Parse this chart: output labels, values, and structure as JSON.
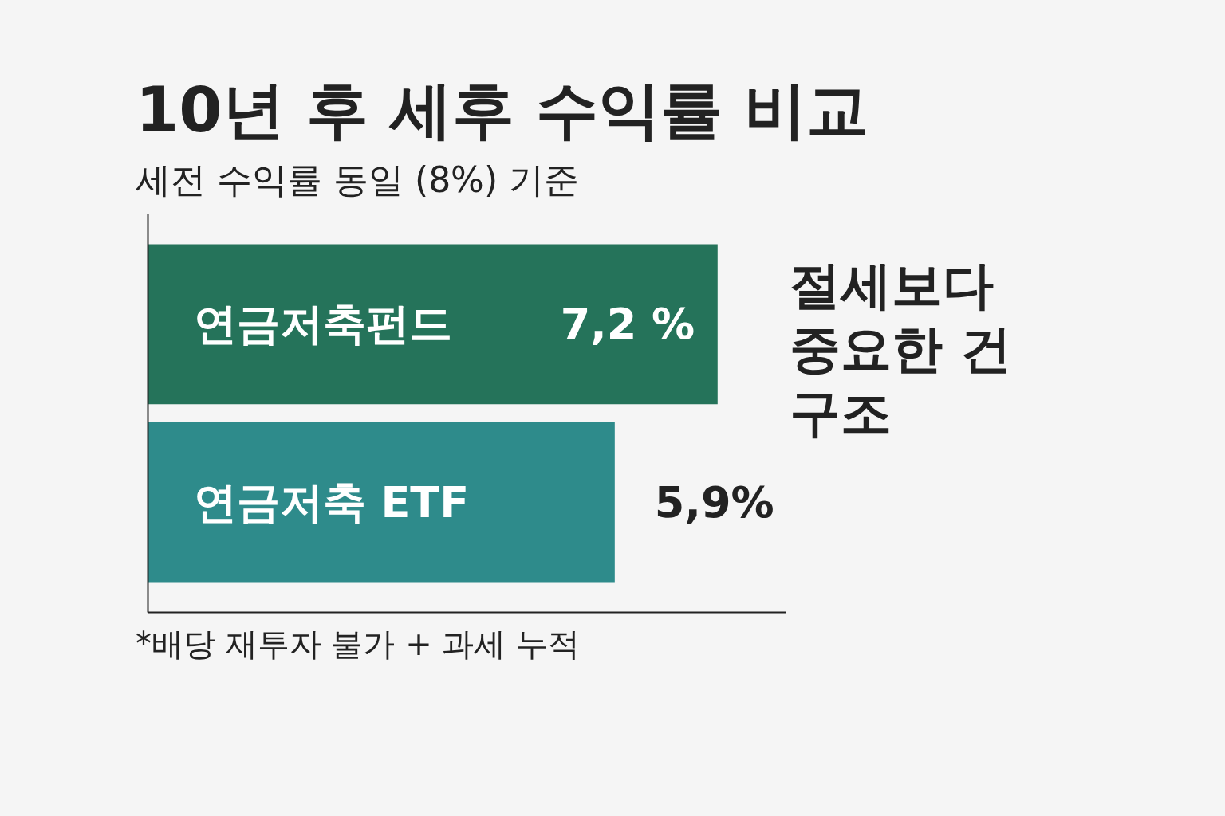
{
  "chart_data": {
    "type": "bar",
    "orientation": "horizontal",
    "title": "10년 후 세후 수익률 비교",
    "subtitle": "세전 수익률 동일 (8%) 기준",
    "categories": [
      "연금저축펀드",
      "연금저축 ETF"
    ],
    "values": [
      7.2,
      5.9
    ],
    "colors": [
      "#25735a",
      "#2e8b8b"
    ],
    "value_labels": [
      "7,2 %",
      "5,9%"
    ],
    "annotations": [
      "절세보다\n중요한 건\n구조",
      "*배당 재투자 불가 + 과세 누적"
    ]
  }
}
